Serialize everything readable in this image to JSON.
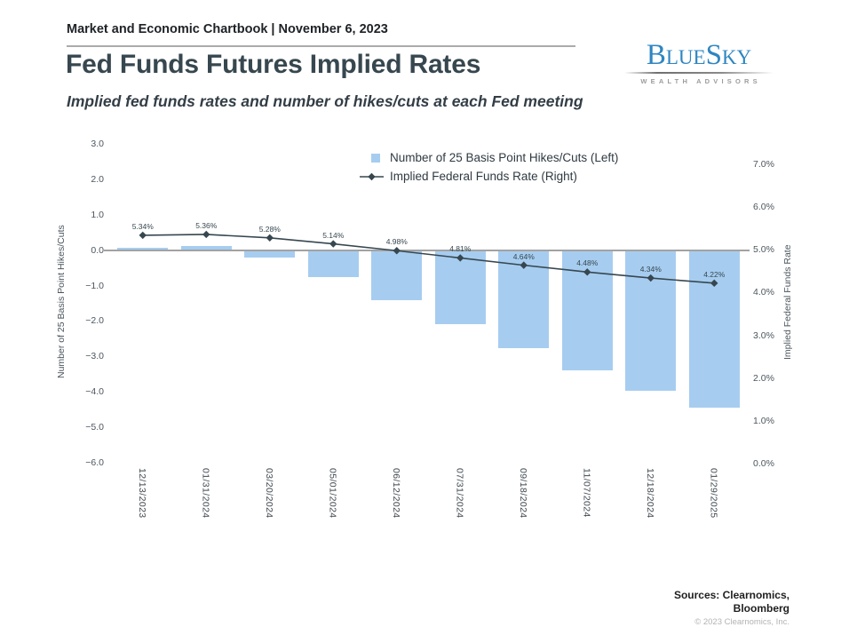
{
  "header": {
    "kicker": "Market and Economic Chartbook | November 6, 2023",
    "title": "Fed Funds Futures Implied Rates",
    "subtitle": "Implied fed funds rates and number of hikes/cuts at each Fed meeting"
  },
  "logo": {
    "brand": "BlueSky",
    "tagline": "WEALTH ADVISORS",
    "brand_color": "#2E86C1"
  },
  "chart_data": {
    "type": "bar+line",
    "grid": false,
    "legend_position": "upper center",
    "categories": [
      "12/13/2023",
      "01/31/2024",
      "03/20/2024",
      "05/01/2024",
      "06/12/2024",
      "07/31/2024",
      "09/18/2024",
      "11/07/2024",
      "12/18/2024",
      "01/29/2025"
    ],
    "series": [
      {
        "name": "Number of 25 Basis Point Hikes/Cuts (Left)",
        "type": "bar",
        "axis": "left",
        "color": "#A6CDF0",
        "values": [
          0.06,
          0.12,
          -0.2,
          -0.76,
          -1.4,
          -2.08,
          -2.76,
          -3.4,
          -3.96,
          -4.45
        ]
      },
      {
        "name": "Implied Federal Funds Rate (Right)",
        "type": "line",
        "axis": "right",
        "color": "#37474F",
        "marker": "diamond",
        "values": [
          5.34,
          5.36,
          5.28,
          5.14,
          4.98,
          4.81,
          4.64,
          4.48,
          4.34,
          4.22
        ],
        "labels": [
          "5.34%",
          "5.36%",
          "5.28%",
          "5.14%",
          "4.98%",
          "4.81%",
          "4.64%",
          "4.48%",
          "4.34%",
          "4.22%"
        ]
      }
    ],
    "left_axis": {
      "title": "Number of 25 Basis Point Hikes/Cuts",
      "range": [
        3.0,
        -6.0
      ],
      "ticks": [
        {
          "label": "3.0",
          "value": 3.0
        },
        {
          "label": "2.0",
          "value": 2.0
        },
        {
          "label": "1.0",
          "value": 1.0
        },
        {
          "label": "0.0",
          "value": 0.0
        },
        {
          "label": "−1.0",
          "value": -1.0
        },
        {
          "label": "−2.0",
          "value": -2.0
        },
        {
          "label": "−3.0",
          "value": -3.0
        },
        {
          "label": "−4.0",
          "value": -4.0
        },
        {
          "label": "−5.0",
          "value": -5.0
        },
        {
          "label": "−6.0",
          "value": -6.0
        }
      ]
    },
    "right_axis": {
      "title": "Implied Federal Funds Rate",
      "range": [
        7.0,
        0.0
      ],
      "ticks": [
        {
          "label": "7.0%",
          "value": 7.0
        },
        {
          "label": "6.0%",
          "value": 6.0
        },
        {
          "label": "5.0%",
          "value": 5.0
        },
        {
          "label": "4.0%",
          "value": 4.0
        },
        {
          "label": "3.0%",
          "value": 3.0
        },
        {
          "label": "2.0%",
          "value": 2.0
        },
        {
          "label": "1.0%",
          "value": 1.0
        },
        {
          "label": "0.0%",
          "value": 0.0
        }
      ]
    }
  },
  "footer": {
    "sources_line1": "Sources: Clearnomics,",
    "sources_line2": "Bloomberg",
    "copyright": "© 2023 Clearnomics, Inc."
  }
}
